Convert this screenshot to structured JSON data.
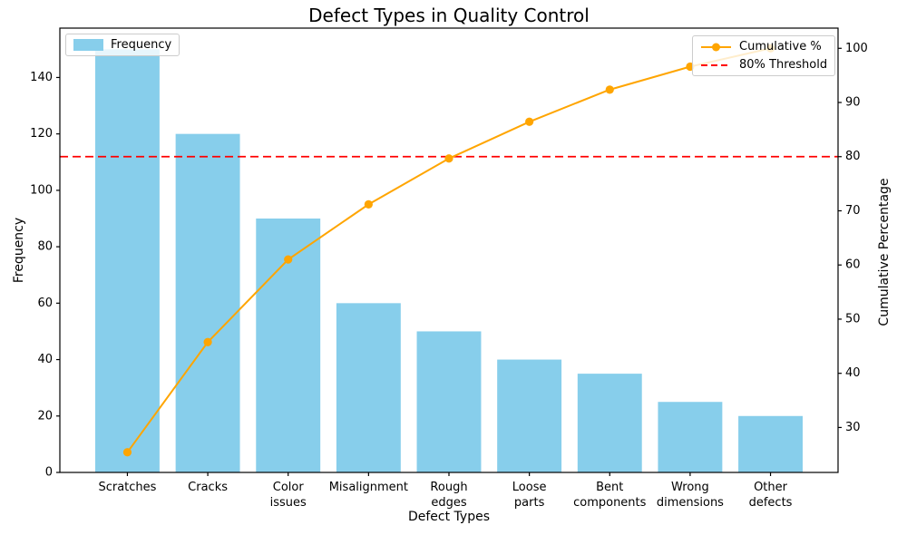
{
  "chart_data": {
    "type": "bar+line",
    "subtype": "pareto",
    "title": "Defect Types in Quality Control",
    "xlabel": "Defect Types",
    "ylabel_left": "Frequency",
    "ylabel_right": "Cumulative Percentage",
    "categories": [
      "Scratches",
      "Cracks",
      "Color\nissues",
      "Misalignment",
      "Rough\nedges",
      "Loose\nparts",
      "Bent\ncomponents",
      "Wrong\ndimensions",
      "Other\ndefects"
    ],
    "series": [
      {
        "name": "Frequency",
        "type": "bar",
        "axis": "left",
        "color": "#87CEEB",
        "values": [
          150,
          120,
          90,
          60,
          50,
          40,
          35,
          25,
          20
        ]
      },
      {
        "name": "Cumulative %",
        "type": "line",
        "axis": "right",
        "color": "#FFA500",
        "marker": "circle",
        "values": [
          25.42,
          45.76,
          61.02,
          71.19,
          79.66,
          86.44,
          92.37,
          96.61,
          100.0
        ]
      },
      {
        "name": "80% Threshold",
        "type": "hline",
        "axis": "right",
        "color": "#FF0000",
        "style": "dashed",
        "value": 80
      }
    ],
    "ylim_left": [
      0,
      157.5
    ],
    "ylim_right": [
      21.7,
      103.73
    ],
    "yticks_left": [
      0,
      20,
      40,
      60,
      80,
      100,
      120,
      140
    ],
    "yticks_right": [
      30,
      40,
      50,
      60,
      70,
      80,
      90,
      100
    ],
    "grid": false,
    "legends": {
      "left": {
        "position": "upper left",
        "items": [
          {
            "label": "Frequency"
          }
        ]
      },
      "right": {
        "position": "upper right",
        "items": [
          {
            "label": "Cumulative %"
          },
          {
            "label": "80% Threshold"
          }
        ]
      }
    }
  }
}
